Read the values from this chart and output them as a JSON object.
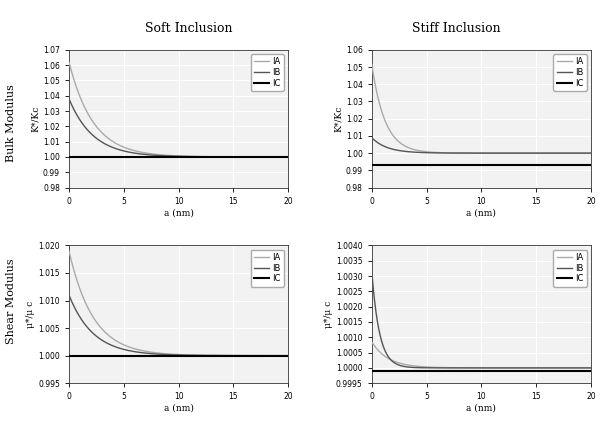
{
  "title_left": "Soft Inclusion",
  "title_right": "Stiff Inclusion",
  "ylabel_top_left": "K*/Kc",
  "ylabel_top_right": "K*/Kc",
  "ylabel_bot_left": "μ*/μ c",
  "ylabel_bot_right": "μ*/μ c",
  "xlabel": "a (nm)",
  "row_label_top": "Bulk Modulus",
  "row_label_bot": "Shear Modulus",
  "legend_labels": [
    "IA",
    "IB",
    "IC"
  ],
  "colors_IA": "#aaaaaa",
  "colors_IB": "#555555",
  "colors_IC": "#000000",
  "lw_IA": 1.0,
  "lw_IB": 1.0,
  "lw_IC": 1.5,
  "soft_bulk": {
    "ylim": [
      0.98,
      1.07
    ],
    "yticks": [
      0.98,
      0.99,
      1.0,
      1.01,
      1.02,
      1.03,
      1.04,
      1.05,
      1.06,
      1.07
    ],
    "IA_A": 0.062,
    "IA_tau": 2.2,
    "IB_A": 0.038,
    "IB_tau": 2.2,
    "IC_val": 1.0
  },
  "stiff_bulk": {
    "ylim": [
      0.98,
      1.06
    ],
    "yticks": [
      0.98,
      0.99,
      1.0,
      1.01,
      1.02,
      1.03,
      1.04,
      1.05,
      1.06
    ],
    "IA_A": 0.052,
    "IA_tau": 1.2,
    "IB_A": 0.009,
    "IB_tau": 1.4,
    "IC_val": 0.993
  },
  "soft_shear": {
    "ylim": [
      0.995,
      1.02
    ],
    "yticks": [
      0.995,
      1.0,
      1.005,
      1.01,
      1.015,
      1.02
    ],
    "IA_A": 0.019,
    "IA_tau": 2.2,
    "IB_A": 0.011,
    "IB_tau": 2.2,
    "IC_val": 1.0
  },
  "stiff_shear": {
    "ylim": [
      0.9995,
      1.004
    ],
    "yticks": [
      0.9995,
      1.0,
      1.0005,
      1.001,
      1.0015,
      1.002,
      1.0025,
      1.003,
      1.0035,
      1.004
    ],
    "IA_A": 0.00085,
    "IA_tau": 1.5,
    "IB_A": 0.0032,
    "IB_tau": 0.7,
    "IC_val": 0.9999
  },
  "bg_color": "#f2f2f2",
  "grid_color": "#ffffff",
  "grid_lw": 0.8
}
